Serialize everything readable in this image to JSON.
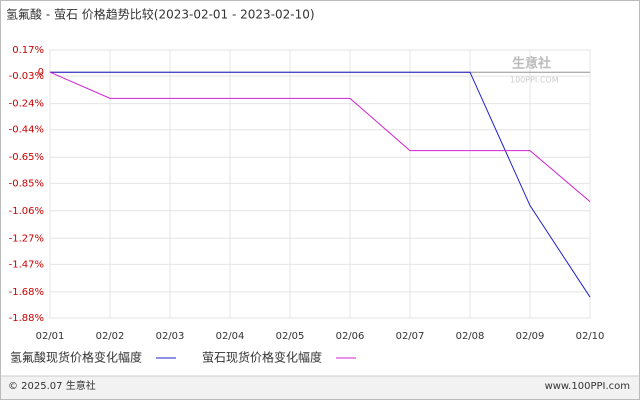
{
  "chart_data": {
    "type": "line",
    "title": "氢氟酸 - 萤石 价格趋势比较(2023-02-01 - 2023-02-10)",
    "categories": [
      "02/01",
      "02/02",
      "02/03",
      "02/04",
      "02/05",
      "02/06",
      "02/07",
      "02/08",
      "02/09",
      "02/10"
    ],
    "series": [
      {
        "name": "氢氟酸现货价格变化幅度",
        "color": "#2020cc",
        "values": [
          0,
          0,
          0,
          0,
          0,
          0,
          0,
          0,
          -1.02,
          -1.72
        ]
      },
      {
        "name": "萤石现货价格变化幅度",
        "color": "#d020d0",
        "values": [
          0,
          -0.2,
          -0.2,
          -0.2,
          -0.2,
          -0.2,
          -0.6,
          -0.6,
          -0.6,
          -0.99
        ]
      }
    ],
    "ylim": [
      -1.88,
      0.17
    ],
    "yticks": [
      {
        "value": 0.17,
        "label": "0.17%"
      },
      {
        "value": 0,
        "label": "0"
      },
      {
        "value": -0.03,
        "label": "-0.03%"
      },
      {
        "value": -0.24,
        "label": "-0.24%"
      },
      {
        "value": -0.44,
        "label": "-0.44%"
      },
      {
        "value": -0.65,
        "label": "-0.65%"
      },
      {
        "value": -0.85,
        "label": "-0.85%"
      },
      {
        "value": -1.06,
        "label": "-1.06%"
      },
      {
        "value": -1.27,
        "label": "-1.27%"
      },
      {
        "value": -1.47,
        "label": "-1.47%"
      },
      {
        "value": -1.68,
        "label": "-1.68%"
      },
      {
        "value": -1.88,
        "label": "-1.88%"
      }
    ],
    "tick_color": "#cc0000",
    "grid": true
  },
  "watermark": {
    "name": "生意社",
    "url": "100PPI.COM"
  },
  "footer": {
    "copyright": "© 2025.07 生意社",
    "site": "www.100PPI.com"
  }
}
